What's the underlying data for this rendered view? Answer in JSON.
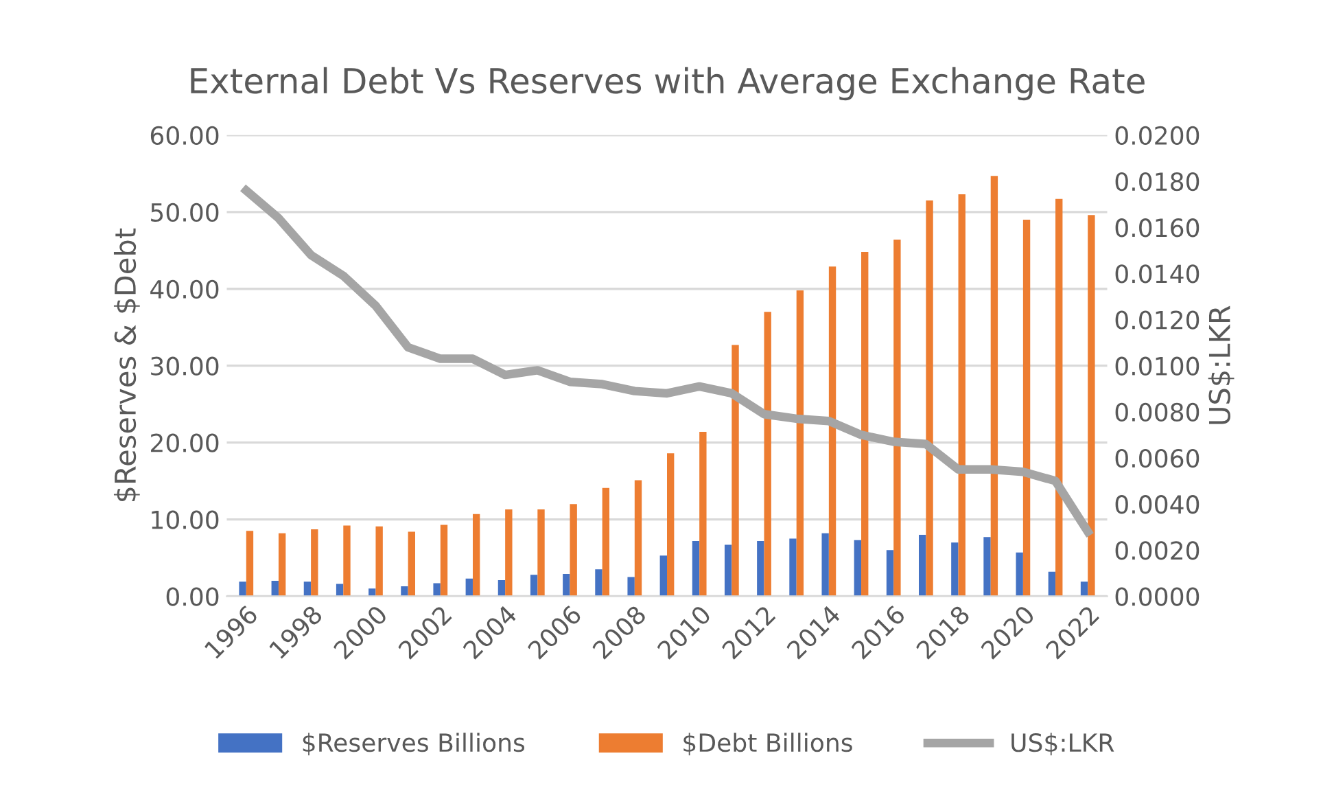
{
  "chart_data": {
    "type": "bar",
    "title": "External Debt Vs Reserves with Average Exchange Rate",
    "ylabel": "$Reserves & $Debt",
    "y2label": "US$:LKR",
    "categories": [
      "1996",
      null,
      "1998",
      null,
      "2000",
      null,
      "2002",
      null,
      "2004",
      null,
      "2006",
      null,
      "2008",
      null,
      "2010",
      null,
      "2012",
      null,
      "2014",
      null,
      "2016",
      null,
      "2018",
      null,
      "2020",
      null,
      "2022"
    ],
    "series": [
      {
        "name": "$Reserves Billions",
        "color": "#4472c4",
        "values": [
          1.9,
          2.0,
          1.9,
          1.6,
          1.0,
          1.3,
          1.7,
          2.3,
          2.1,
          2.8,
          2.9,
          3.5,
          2.5,
          5.3,
          7.2,
          6.7,
          7.2,
          7.5,
          8.2,
          7.3,
          6.0,
          8.0,
          7.0,
          7.7,
          5.7,
          3.2,
          1.9
        ]
      },
      {
        "name": "$Debt Billions",
        "color": "#ed7d31",
        "values": [
          8.5,
          8.2,
          8.7,
          9.2,
          9.1,
          8.4,
          9.3,
          10.7,
          11.3,
          11.3,
          12.0,
          14.1,
          15.1,
          18.6,
          21.4,
          32.7,
          37.0,
          39.8,
          42.9,
          44.8,
          46.4,
          51.5,
          52.3,
          54.7,
          49.0,
          51.7,
          49.6
        ]
      },
      {
        "name": "US$:LKR",
        "type": "line",
        "axis": "y2",
        "color": "#a5a5a5",
        "values": [
          0.0176,
          0.0164,
          0.0148,
          0.0139,
          0.0126,
          0.0108,
          0.0103,
          0.0103,
          0.0096,
          0.0098,
          0.0093,
          0.0092,
          0.0089,
          0.0088,
          0.0091,
          0.0088,
          0.0079,
          0.0077,
          0.0076,
          0.007,
          0.0067,
          0.0066,
          0.0055,
          0.0055,
          0.0054,
          0.005,
          0.0028
        ]
      }
    ],
    "ylim": [
      0,
      60
    ],
    "yticks": [
      {
        "value": 0,
        "label": "0.00"
      },
      {
        "value": 10,
        "label": "10.00"
      },
      {
        "value": 20,
        "label": "20.00"
      },
      {
        "value": 30,
        "label": "30.00"
      },
      {
        "value": 40,
        "label": "40.00"
      },
      {
        "value": 50,
        "label": "50.00"
      },
      {
        "value": 60,
        "label": "60.00"
      }
    ],
    "y2lim": [
      0,
      0.02
    ],
    "y2ticks": [
      {
        "value": 0,
        "label": "0.0000"
      },
      {
        "value": 0.002,
        "label": "0.0020"
      },
      {
        "value": 0.004,
        "label": "0.0040"
      },
      {
        "value": 0.006,
        "label": "0.0060"
      },
      {
        "value": 0.008,
        "label": "0.0080"
      },
      {
        "value": 0.01,
        "label": "0.0100"
      },
      {
        "value": 0.012,
        "label": "0.0120"
      },
      {
        "value": 0.014,
        "label": "0.0140"
      },
      {
        "value": 0.016,
        "label": "0.0160"
      },
      {
        "value": 0.018,
        "label": "0.0180"
      },
      {
        "value": 0.02,
        "label": "0.0200"
      }
    ],
    "grid": "y",
    "legend": "bottom",
    "marker": "none",
    "line_style": "solid"
  }
}
